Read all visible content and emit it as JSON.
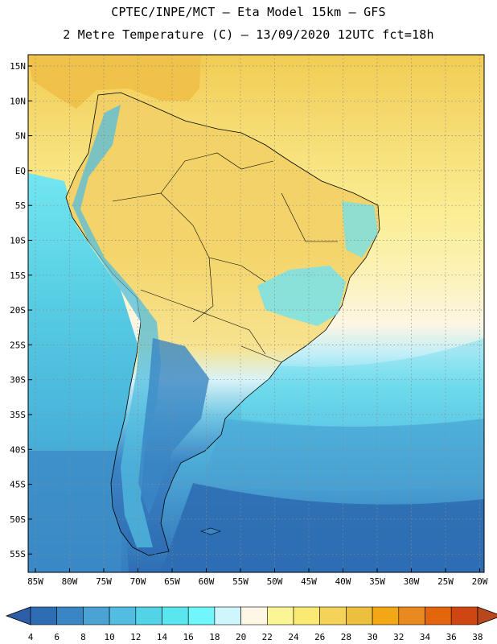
{
  "header": {
    "line1": "CPTEC/INPE/MCT –  Eta Model 15km – GFS",
    "line2": "2 Metre Temperature (C) – 13/09/2020 12UTC fct=18h"
  },
  "map": {
    "lat_labels": [
      "15N",
      "10N",
      "5N",
      "EQ",
      "5S",
      "10S",
      "15S",
      "20S",
      "25S",
      "30S",
      "35S",
      "40S",
      "45S",
      "50S",
      "55S"
    ],
    "lon_labels": [
      "85W",
      "80W",
      "75W",
      "70W",
      "65W",
      "60W",
      "55W",
      "50W",
      "45W",
      "40W",
      "35W",
      "30W",
      "25W",
      "20W"
    ],
    "region": "South America"
  },
  "colorbar": {
    "unit": "C",
    "ticks": [
      "4",
      "6",
      "8",
      "10",
      "12",
      "14",
      "16",
      "18",
      "20",
      "22",
      "24",
      "26",
      "28",
      "30",
      "32",
      "34",
      "36",
      "38"
    ],
    "colors": [
      "#2e6db3",
      "#3a86c4",
      "#4aa3d3",
      "#52bde0",
      "#52d4e6",
      "#59e6ef",
      "#6ff7fb",
      "#cff6fd",
      "#fff7e6",
      "#fcf596",
      "#faea73",
      "#f5d35a",
      "#ecbf3d",
      "#f2a814",
      "#e98a20",
      "#e3650c",
      "#cf4613"
    ],
    "under_color": "#2d5fa8",
    "over_color": "#b8481c"
  }
}
